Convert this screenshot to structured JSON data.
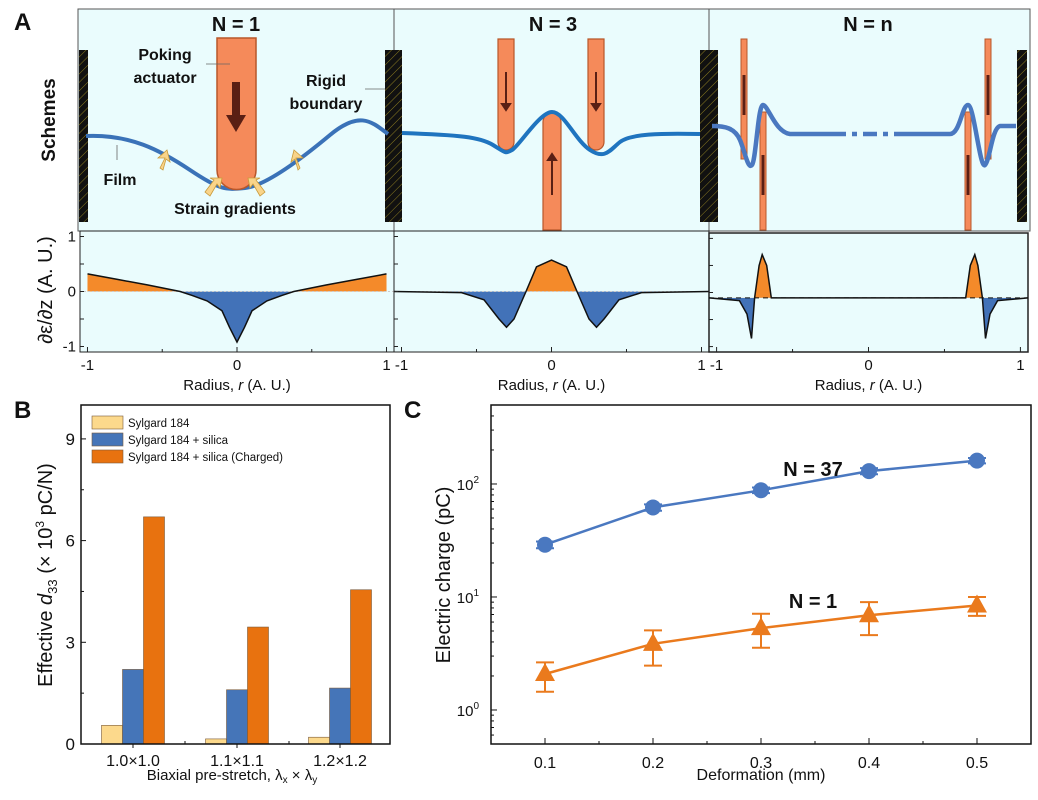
{
  "figure": {
    "panel_a_letter": "A",
    "panel_b_letter": "B",
    "panel_c_letter": "C",
    "schemes_label": "Schemes",
    "schemes": [
      {
        "title": "N = 1",
        "labels": {
          "actuator_line1": "Poking",
          "actuator_line2": "actuator",
          "boundary_line1": "Rigid",
          "boundary_line2": "boundary",
          "film": "Film",
          "strain": "Strain gradients"
        }
      },
      {
        "title": "N = 3"
      },
      {
        "title": "N = n"
      }
    ],
    "colors": {
      "scheme_bg": "#eafcfd",
      "film": "#3a72b8",
      "actuator": "#f58a5a",
      "actuator_border": "#b8572a",
      "arrow": "#5a1f14",
      "strain_arrow": "#f9d48a",
      "positive": "#f48a2a",
      "negative": "#4272b8",
      "bar_yellow": "#fcd98c",
      "bar_blue": "#4575b8",
      "bar_orange": "#e8720f",
      "line_blue": "#4a78c0",
      "line_orange": "#ea7a1d"
    }
  },
  "chart_data": [
    {
      "type": "area",
      "panel": "A",
      "ylabel": "∂ε/∂z (A. U.)",
      "xlabel_prefix": "Radius, ",
      "xlabel_var": "r",
      "xlabel_suffix": " (A. U.)",
      "xlim": [
        -1.05,
        1.05
      ],
      "ylim": [
        -1.1,
        1.1
      ],
      "xticks": [
        "-1",
        "0",
        "1"
      ],
      "yticks": [
        "-1",
        "0",
        "1"
      ],
      "baseline": 0,
      "x": [
        -1,
        -0.8,
        -0.6,
        -0.38,
        -0.3,
        -0.2,
        -0.1,
        -0.05,
        0,
        0.05,
        0.1,
        0.2,
        0.3,
        0.38,
        0.6,
        0.8,
        1
      ],
      "y": [
        0.32,
        0.22,
        0.12,
        0.0,
        -0.07,
        -0.17,
        -0.35,
        -0.65,
        -0.92,
        -0.65,
        -0.35,
        -0.17,
        -0.07,
        0.0,
        0.12,
        0.22,
        0.32
      ]
    },
    {
      "type": "area",
      "panel": "A",
      "xlabel_prefix": "Radius, ",
      "xlabel_var": "r",
      "xlabel_suffix": " (A. U.)",
      "xlim": [
        -1.05,
        1.05
      ],
      "ylim": [
        -1.1,
        1.1
      ],
      "xticks": [
        "-1",
        "0",
        "1"
      ],
      "baseline": 0,
      "x": [
        -1.05,
        -0.6,
        -0.45,
        -0.35,
        -0.3,
        -0.25,
        -0.17,
        -0.1,
        0,
        0.1,
        0.17,
        0.25,
        0.3,
        0.35,
        0.45,
        0.6,
        1.05
      ],
      "y": [
        0,
        -0.02,
        -0.15,
        -0.5,
        -0.65,
        -0.5,
        0,
        0.45,
        0.57,
        0.45,
        0,
        -0.5,
        -0.65,
        -0.5,
        -0.15,
        -0.02,
        0
      ]
    },
    {
      "type": "area",
      "panel": "A",
      "xlabel_prefix": "Radius, ",
      "xlabel_var": "r",
      "xlabel_suffix": " (A. U.)",
      "xlim": [
        -1.05,
        1.05
      ],
      "ylim": [
        -1.1,
        1.1
      ],
      "xticks": [
        "-1",
        "0",
        "1"
      ],
      "baseline": -0.1,
      "x": [
        -1.05,
        -0.85,
        -0.8,
        -0.77,
        -0.75,
        -0.72,
        -0.7,
        -0.67,
        -0.64,
        0.64,
        0.67,
        0.7,
        0.72,
        0.75,
        0.77,
        0.8,
        0.85,
        1.05
      ],
      "y": [
        -0.1,
        -0.15,
        -0.4,
        -0.85,
        -0.1,
        0.5,
        0.7,
        0.5,
        -0.1,
        -0.1,
        0.5,
        0.7,
        0.5,
        -0.1,
        -0.85,
        -0.4,
        -0.15,
        -0.1
      ]
    },
    {
      "type": "bar",
      "panel": "B",
      "categories": [
        "1.0×1.0",
        "1.1×1.1",
        "1.2×1.2"
      ],
      "series": [
        {
          "name": "Sylgard 184",
          "values": [
            0.55,
            0.15,
            0.2
          ]
        },
        {
          "name": "Sylgard 184 + silica",
          "values": [
            2.2,
            1.6,
            1.65
          ]
        },
        {
          "name": "Sylgard 184 + silica (Charged)",
          "values": [
            6.7,
            3.45,
            4.55
          ]
        }
      ],
      "ylabel_prefix": "Effective ",
      "ylabel_var": "d",
      "ylabel_sub": "33",
      "ylabel_mid": " (× 10",
      "ylabel_sup": "3",
      "ylabel_suffix": " pC/N)",
      "xlabel": "Biaxial pre-stretch, λ",
      "xlabel_sub1": "x",
      "xlabel_mid": " × λ",
      "xlabel_sub2": "y",
      "ylim": [
        0,
        10
      ],
      "yticks": [
        0,
        3,
        6,
        9
      ],
      "legend": "top-left"
    },
    {
      "type": "line",
      "panel": "C",
      "x": [
        0.1,
        0.2,
        0.3,
        0.4,
        0.5
      ],
      "series": [
        {
          "name": "N = 37",
          "marker": "circle",
          "values": [
            29,
            62,
            88,
            130,
            161
          ],
          "err_low": [
            27,
            58,
            83,
            122,
            152
          ],
          "err_high": [
            31,
            66,
            93,
            138,
            170
          ]
        },
        {
          "name": "N = 1",
          "marker": "triangle",
          "values": [
            2.08,
            3.85,
            5.3,
            6.9,
            8.4
          ],
          "err_low": [
            1.45,
            2.47,
            3.55,
            4.6,
            6.8
          ],
          "err_high": [
            2.64,
            5.06,
            7.1,
            9.0,
            10.0
          ]
        }
      ],
      "xlabel": "Deformation (mm)",
      "ylabel": "Electric charge (pC)",
      "xlim": [
        0.05,
        0.55
      ],
      "ylim": [
        0.5,
        500
      ],
      "yscale": "log",
      "xticks": [
        "0.1",
        "0.2",
        "0.3",
        "0.4",
        "0.5"
      ],
      "yticks": [
        {
          "base": "10",
          "exp": "0"
        },
        {
          "base": "10",
          "exp": "1"
        },
        {
          "base": "10",
          "exp": "2"
        }
      ]
    }
  ]
}
